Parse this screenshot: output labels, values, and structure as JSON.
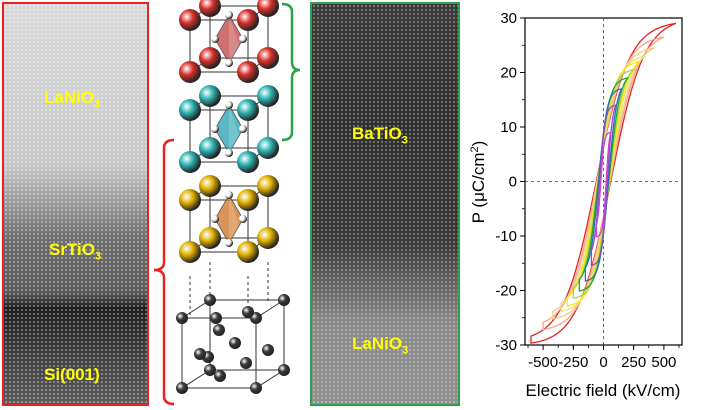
{
  "left_panel": {
    "labels": {
      "l1_main": "LaNiO",
      "l1_sub": "3",
      "l2_main": "SrTiO",
      "l2_sub": "3",
      "l3": "Si(001)"
    },
    "frame_color": "#e8231f"
  },
  "right_panel": {
    "labels": {
      "l1_main": "BaTiO",
      "l1_sub": "3",
      "l2_main": "LaNiO",
      "l2_sub": "3"
    },
    "frame_color": "#2ea04a"
  },
  "structure": {
    "atom_colors": {
      "la": "#d8302c",
      "ba": "#2eb4b4",
      "sr": "#e0b000",
      "si": "#3a3a3a",
      "o": "#ffffff"
    },
    "octahedra_colors": [
      "#c04040",
      "#20a0b0",
      "#d07020"
    ]
  },
  "chart_data": {
    "type": "line",
    "xlabel": "Electric field (kV/cm)",
    "ylabel_main": "P (",
    "ylabel_unit_main": "μC/cm",
    "ylabel_unit_sup": "2",
    "ylabel_close": ")",
    "xlim": [
      -650,
      650
    ],
    "ylim": [
      -30,
      30
    ],
    "xticks": [
      -500,
      -250,
      0,
      250,
      500
    ],
    "xtick_labels": [
      "-500",
      "-250",
      "0",
      "250",
      "500"
    ],
    "yticks": [
      -30,
      -20,
      -10,
      0,
      10,
      20,
      30
    ],
    "ytick_labels": [
      "-30",
      "-20",
      "-10",
      "0",
      "10",
      "20",
      "30"
    ],
    "loops": [
      {
        "emax": 600,
        "pmax": 29,
        "coercive": 60,
        "color": "#e8231f"
      },
      {
        "emax": 500,
        "pmax": 26.5,
        "coercive": 55,
        "color": "#f4a58a"
      },
      {
        "emax": 420,
        "pmax": 24.5,
        "coercive": 52,
        "color": "#f7c98a"
      },
      {
        "emax": 350,
        "pmax": 23,
        "coercive": 50,
        "color": "#e6e07a"
      },
      {
        "emax": 300,
        "pmax": 22,
        "coercive": 48,
        "color": "#ffe800"
      },
      {
        "emax": 250,
        "pmax": 20.5,
        "coercive": 46,
        "color": "#9fd35a"
      },
      {
        "emax": 200,
        "pmax": 19,
        "coercive": 44,
        "color": "#2ca02c"
      },
      {
        "emax": 150,
        "pmax": 17,
        "coercive": 40,
        "color": "#2f6fb0"
      },
      {
        "emax": 100,
        "pmax": 14,
        "coercive": 32,
        "color": "#8a4dd0"
      },
      {
        "emax": 60,
        "pmax": 9,
        "coercive": 22,
        "color": "#d040d0"
      }
    ]
  }
}
